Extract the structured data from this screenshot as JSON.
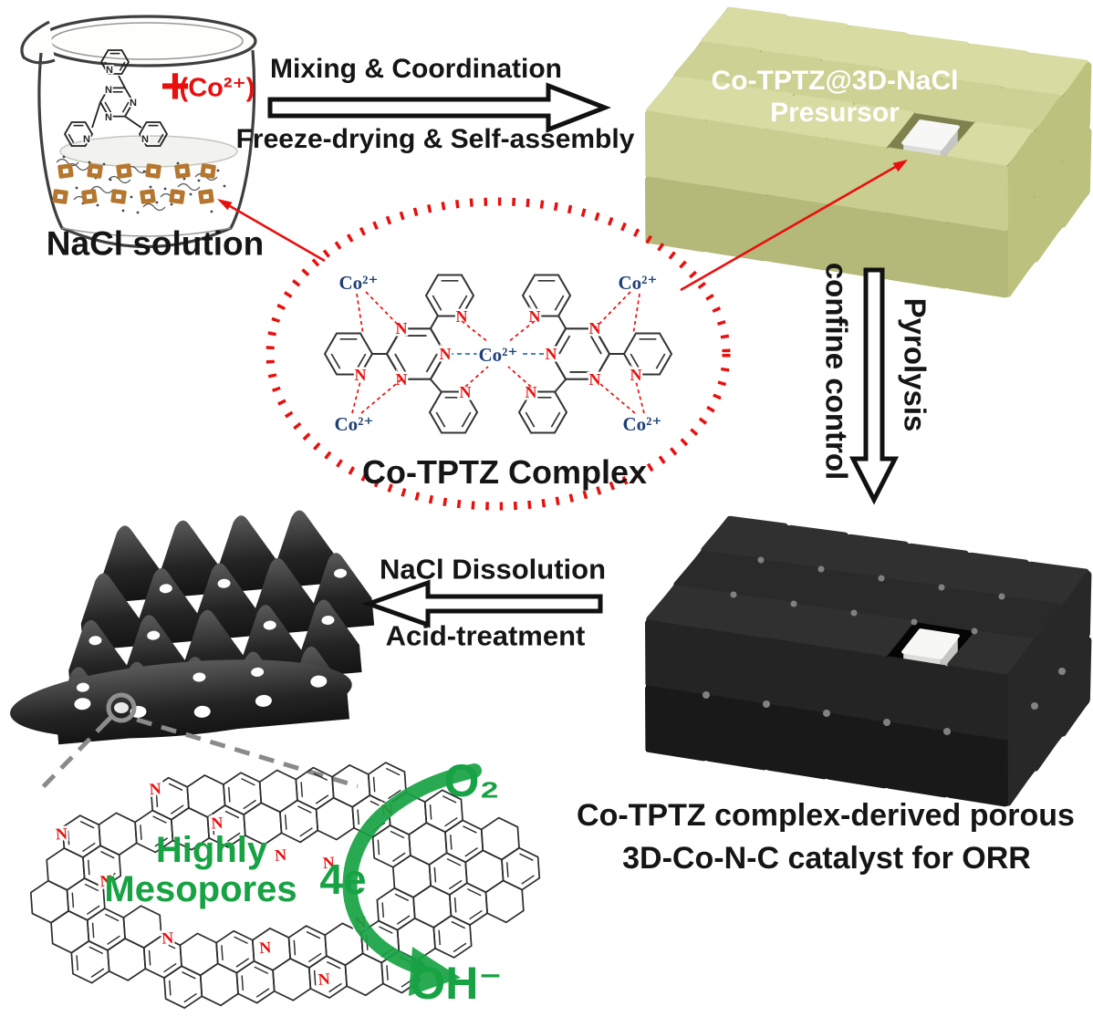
{
  "figure": {
    "beaker": {
      "caption": "NaCl solution",
      "plus": "+",
      "cobalt_ion": "(Co²⁺)"
    },
    "step1": {
      "top": "Mixing & Coordination",
      "bottom": "Freeze-drying & Self-assembly"
    },
    "precursor": {
      "line1": "Co-TPTZ@3D-NaCl",
      "line2": "Presursor"
    },
    "pyrolysis_step": {
      "left": "confine control",
      "right": "Pyrolysis"
    },
    "complex": {
      "caption": "Co-TPTZ Complex",
      "cobalt": "Co²⁺",
      "nitrogen": "N"
    },
    "step3": {
      "top": "NaCl Dissolution",
      "bottom": "Acid-treatment"
    },
    "orr": {
      "highly": "Highly",
      "mesopores": "Mesopores",
      "electrons": "4e",
      "oxygen": "O₂",
      "hydroxide": "OH⁻",
      "nitrogen": "N"
    },
    "caption": {
      "line1": "Co-TPTZ complex-derived porous",
      "line2": "3D-Co-N-C catalyst for ORR"
    }
  },
  "colors": {
    "red": "#e8100e",
    "blue_label": "#1f4077",
    "blue_dash": "#2e74b5",
    "green_text": "#17a243",
    "brown": "#b5772f",
    "gray_dash": "#8a8a8a",
    "cube_green_top": "#d8dba2",
    "cube_green_front_hi": "#c9cd90",
    "cube_green_front_lo": "#b4b878",
    "cube_green_side": "#bdc17e",
    "cube_green_back": "#7f824e",
    "cube_black_top": "#303030",
    "cube_black_front_hi": "#242424",
    "cube_black_front_lo": "#191919",
    "cube_black_side": "#282828",
    "cube_black_back": "#050505"
  }
}
